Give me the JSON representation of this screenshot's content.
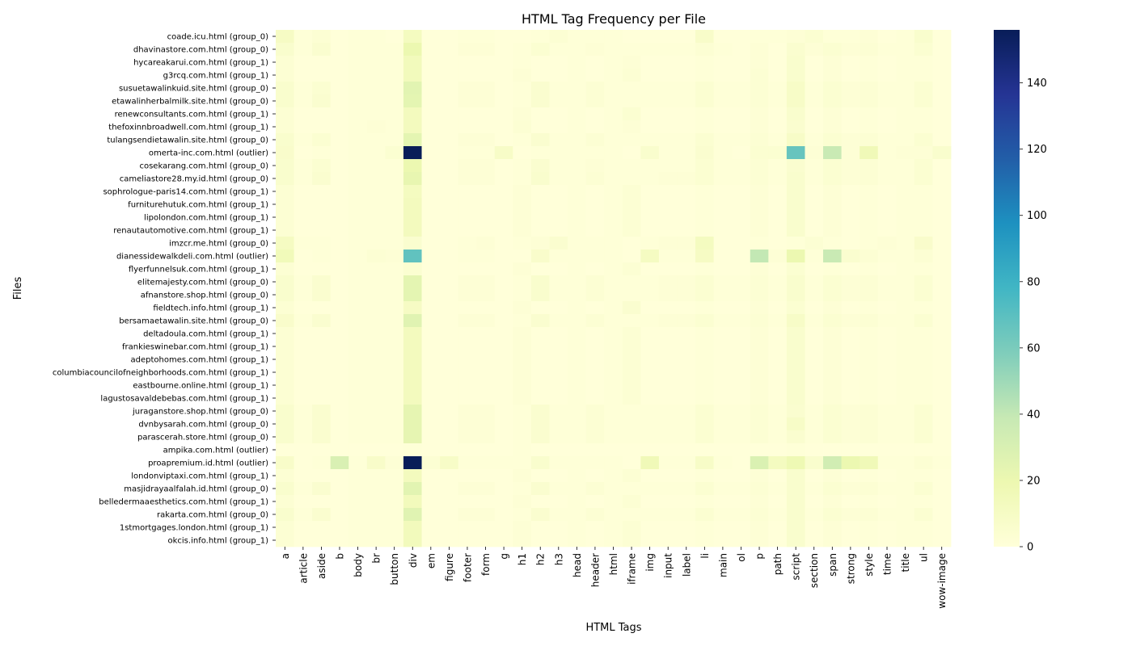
{
  "chart_data": {
    "type": "heatmap",
    "title": "HTML Tag Frequency per File",
    "xlabel": "HTML Tags",
    "ylabel": "Files",
    "colorscale": "YlGnBu",
    "colorbar": {
      "min": 0,
      "max": 156,
      "ticks": [
        0,
        20,
        40,
        60,
        80,
        100,
        120,
        140
      ]
    },
    "columns": [
      "a",
      "article",
      "aside",
      "b",
      "body",
      "br",
      "button",
      "div",
      "em",
      "figure",
      "footer",
      "form",
      "g",
      "h1",
      "h2",
      "h3",
      "head",
      "header",
      "html",
      "iframe",
      "img",
      "input",
      "label",
      "li",
      "main",
      "ol",
      "p",
      "path",
      "script",
      "section",
      "span",
      "strong",
      "style",
      "time",
      "title",
      "ul",
      "wow-image"
    ],
    "rows": [
      "coade.icu.html (group_0)",
      "dhavinastore.com.html (group_0)",
      "hycareakarui.com.html (group_1)",
      "g3rcq.com.html (group_1)",
      "susuetawalinkuid.site.html (group_0)",
      "etawalinherbalmilk.site.html (group_0)",
      "renewconsultants.com.html (group_1)",
      "thefoxinnbroadwell.com.html (group_1)",
      "tulangsendietawalin.site.html (group_0)",
      "omerta-inc.com.html (outlier)",
      "cosekarang.com.html (group_0)",
      "cameliastore28.my.id.html (group_0)",
      "sophrologue-paris14.com.html (group_1)",
      "furniturehutuk.com.html (group_1)",
      "lipolondon.com.html (group_1)",
      "renautautomotive.com.html (group_1)",
      "imzcr.me.html (group_0)",
      "dianessidewalkdeli.com.html (outlier)",
      "flyerfunnelsuk.com.html (group_1)",
      "elitemajesty.com.html (group_0)",
      "afnanstore.shop.html (group_0)",
      "fieldtech.info.html (group_1)",
      "bersamaetawalin.site.html (group_0)",
      "deltadoula.com.html (group_1)",
      "frankieswinebar.com.html (group_1)",
      "adeptohomes.com.html (group_1)",
      "columbiacouncilofneighborhoods.com.html (group_1)",
      "eastbourne.online.html (group_1)",
      "lagustosavaldebebas.com.html (group_1)",
      "juraganstore.shop.html (group_0)",
      "dvnbysarah.com.html (group_0)",
      "parascerah.store.html (group_0)",
      "ampika.com.html (outlier)",
      "proapremium.id.html (outlier)",
      "londonviptaxi.com.html (group_1)",
      "masjidrayaalfalah.id.html (group_0)",
      "belledermaaesthetics.com.html (group_1)",
      "rakarta.com.html (group_0)",
      "1stmortgages.london.html (group_1)",
      "okcis.info.html (group_1)"
    ],
    "values": [
      [
        10,
        1,
        3,
        0,
        1,
        1,
        0,
        12,
        0,
        0,
        1,
        1,
        0,
        0,
        1,
        3,
        1,
        1,
        1,
        0,
        0,
        0,
        0,
        8,
        0,
        0,
        1,
        1,
        2,
        4,
        1,
        1,
        2,
        0,
        1,
        6,
        0
      ],
      [
        6,
        1,
        5,
        0,
        1,
        1,
        1,
        20,
        0,
        0,
        2,
        2,
        0,
        1,
        4,
        1,
        1,
        2,
        1,
        1,
        1,
        1,
        1,
        3,
        1,
        0,
        2,
        0,
        5,
        2,
        4,
        2,
        3,
        1,
        1,
        4,
        0
      ],
      [
        3,
        0,
        0,
        0,
        1,
        1,
        1,
        14,
        0,
        0,
        0,
        0,
        0,
        1,
        0,
        0,
        1,
        0,
        1,
        2,
        0,
        0,
        0,
        1,
        0,
        0,
        2,
        0,
        6,
        0,
        2,
        0,
        1,
        0,
        1,
        1,
        0
      ],
      [
        3,
        0,
        0,
        0,
        1,
        1,
        1,
        14,
        0,
        0,
        0,
        0,
        0,
        2,
        0,
        0,
        1,
        0,
        1,
        3,
        0,
        0,
        0,
        1,
        0,
        0,
        3,
        0,
        6,
        0,
        2,
        0,
        1,
        0,
        1,
        1,
        0
      ],
      [
        6,
        1,
        4,
        0,
        1,
        1,
        1,
        25,
        0,
        0,
        2,
        2,
        0,
        1,
        5,
        1,
        1,
        3,
        1,
        1,
        1,
        1,
        1,
        4,
        1,
        1,
        3,
        1,
        9,
        1,
        4,
        2,
        3,
        1,
        1,
        4,
        0
      ],
      [
        6,
        1,
        5,
        0,
        1,
        1,
        1,
        24,
        0,
        0,
        2,
        2,
        0,
        1,
        5,
        1,
        1,
        3,
        1,
        1,
        1,
        1,
        1,
        4,
        1,
        1,
        3,
        1,
        9,
        1,
        4,
        2,
        3,
        1,
        1,
        4,
        0
      ],
      [
        3,
        0,
        0,
        0,
        1,
        1,
        1,
        13,
        0,
        0,
        0,
        0,
        0,
        2,
        0,
        0,
        1,
        0,
        1,
        4,
        0,
        0,
        0,
        1,
        0,
        0,
        2,
        0,
        6,
        0,
        2,
        0,
        1,
        0,
        1,
        1,
        0
      ],
      [
        3,
        0,
        0,
        0,
        1,
        2,
        1,
        13,
        0,
        0,
        0,
        0,
        0,
        3,
        0,
        0,
        1,
        0,
        1,
        2,
        0,
        0,
        0,
        1,
        0,
        0,
        2,
        0,
        5,
        0,
        2,
        0,
        1,
        0,
        1,
        1,
        0
      ],
      [
        6,
        1,
        4,
        0,
        1,
        1,
        1,
        24,
        0,
        0,
        2,
        2,
        0,
        1,
        5,
        1,
        1,
        3,
        1,
        1,
        1,
        1,
        1,
        4,
        1,
        1,
        3,
        1,
        9,
        1,
        4,
        2,
        3,
        1,
        1,
        4,
        0
      ],
      [
        7,
        0,
        1,
        0,
        1,
        1,
        4,
        156,
        0,
        0,
        1,
        1,
        9,
        0,
        1,
        1,
        1,
        1,
        1,
        0,
        6,
        1,
        1,
        5,
        1,
        0,
        4,
        4,
        66,
        2,
        38,
        2,
        16,
        1,
        2,
        2,
        6
      ],
      [
        6,
        1,
        4,
        0,
        1,
        1,
        1,
        20,
        0,
        0,
        2,
        2,
        0,
        1,
        5,
        1,
        1,
        2,
        1,
        1,
        1,
        1,
        1,
        4,
        1,
        1,
        3,
        1,
        5,
        1,
        4,
        2,
        3,
        1,
        1,
        4,
        0
      ],
      [
        6,
        1,
        5,
        0,
        1,
        1,
        1,
        22,
        0,
        0,
        2,
        2,
        0,
        1,
        6,
        1,
        1,
        3,
        1,
        1,
        1,
        2,
        2,
        4,
        1,
        1,
        3,
        1,
        6,
        1,
        4,
        2,
        3,
        1,
        1,
        4,
        0
      ],
      [
        3,
        0,
        0,
        0,
        1,
        1,
        1,
        12,
        0,
        0,
        0,
        0,
        0,
        2,
        0,
        0,
        1,
        0,
        1,
        3,
        0,
        0,
        0,
        1,
        0,
        0,
        2,
        0,
        6,
        0,
        2,
        0,
        1,
        0,
        1,
        1,
        0
      ],
      [
        3,
        0,
        0,
        0,
        1,
        1,
        1,
        13,
        0,
        0,
        0,
        0,
        0,
        2,
        0,
        0,
        1,
        0,
        1,
        3,
        0,
        0,
        0,
        1,
        0,
        0,
        2,
        0,
        6,
        0,
        2,
        0,
        1,
        0,
        1,
        1,
        0
      ],
      [
        3,
        0,
        0,
        0,
        1,
        1,
        1,
        13,
        0,
        0,
        0,
        0,
        0,
        2,
        0,
        0,
        1,
        0,
        1,
        3,
        0,
        0,
        0,
        1,
        0,
        0,
        2,
        0,
        6,
        0,
        2,
        0,
        1,
        0,
        1,
        1,
        0
      ],
      [
        3,
        0,
        0,
        0,
        1,
        1,
        1,
        13,
        0,
        0,
        0,
        0,
        0,
        2,
        0,
        0,
        1,
        0,
        1,
        3,
        0,
        0,
        0,
        1,
        0,
        0,
        2,
        0,
        6,
        0,
        2,
        0,
        1,
        0,
        1,
        1,
        0
      ],
      [
        11,
        1,
        1,
        0,
        1,
        1,
        1,
        5,
        0,
        0,
        1,
        2,
        0,
        1,
        2,
        5,
        1,
        1,
        1,
        0,
        1,
        2,
        2,
        12,
        0,
        0,
        1,
        0,
        1,
        3,
        1,
        0,
        1,
        2,
        1,
        7,
        0
      ],
      [
        15,
        0,
        1,
        0,
        1,
        3,
        2,
        68,
        0,
        0,
        1,
        1,
        0,
        0,
        7,
        1,
        1,
        1,
        1,
        0,
        11,
        1,
        1,
        10,
        0,
        0,
        40,
        2,
        20,
        1,
        38,
        5,
        3,
        1,
        1,
        3,
        0
      ],
      [
        3,
        0,
        0,
        0,
        1,
        1,
        1,
        4,
        0,
        0,
        0,
        0,
        0,
        2,
        0,
        0,
        1,
        0,
        1,
        3,
        0,
        0,
        0,
        1,
        0,
        0,
        2,
        0,
        4,
        0,
        1,
        0,
        1,
        0,
        1,
        1,
        0
      ],
      [
        6,
        1,
        5,
        0,
        1,
        1,
        1,
        24,
        0,
        0,
        2,
        2,
        0,
        1,
        6,
        1,
        1,
        3,
        1,
        1,
        1,
        2,
        2,
        4,
        1,
        1,
        3,
        1,
        6,
        1,
        4,
        2,
        3,
        1,
        1,
        4,
        0
      ],
      [
        6,
        1,
        5,
        0,
        1,
        1,
        1,
        24,
        0,
        0,
        2,
        2,
        0,
        1,
        6,
        1,
        1,
        3,
        1,
        1,
        1,
        2,
        2,
        4,
        1,
        1,
        3,
        1,
        6,
        1,
        4,
        2,
        3,
        1,
        1,
        4,
        0
      ],
      [
        3,
        0,
        0,
        0,
        1,
        1,
        1,
        10,
        0,
        0,
        0,
        0,
        0,
        2,
        0,
        0,
        1,
        0,
        1,
        5,
        0,
        0,
        0,
        1,
        0,
        0,
        2,
        0,
        4,
        0,
        2,
        0,
        1,
        0,
        1,
        1,
        0
      ],
      [
        7,
        1,
        5,
        0,
        1,
        1,
        1,
        26,
        0,
        0,
        2,
        2,
        0,
        1,
        5,
        1,
        1,
        3,
        1,
        1,
        1,
        2,
        2,
        4,
        1,
        1,
        3,
        1,
        9,
        1,
        4,
        2,
        3,
        1,
        1,
        4,
        0
      ],
      [
        3,
        0,
        0,
        0,
        1,
        1,
        1,
        13,
        0,
        0,
        0,
        0,
        0,
        2,
        0,
        0,
        1,
        0,
        1,
        3,
        0,
        0,
        0,
        1,
        0,
        0,
        2,
        0,
        6,
        0,
        2,
        0,
        1,
        0,
        1,
        1,
        0
      ],
      [
        3,
        0,
        0,
        0,
        1,
        1,
        1,
        13,
        0,
        0,
        0,
        0,
        0,
        2,
        0,
        0,
        1,
        0,
        1,
        3,
        0,
        0,
        0,
        1,
        0,
        0,
        2,
        0,
        6,
        0,
        2,
        0,
        1,
        0,
        1,
        1,
        0
      ],
      [
        3,
        0,
        0,
        0,
        1,
        1,
        1,
        13,
        0,
        0,
        0,
        0,
        0,
        2,
        0,
        0,
        1,
        0,
        1,
        3,
        0,
        0,
        0,
        1,
        0,
        0,
        2,
        0,
        6,
        0,
        2,
        0,
        1,
        0,
        1,
        1,
        0
      ],
      [
        3,
        0,
        0,
        0,
        1,
        1,
        1,
        13,
        0,
        0,
        0,
        0,
        0,
        2,
        0,
        0,
        1,
        0,
        1,
        3,
        0,
        0,
        0,
        1,
        0,
        0,
        2,
        0,
        6,
        0,
        2,
        0,
        1,
        0,
        1,
        1,
        0
      ],
      [
        3,
        0,
        0,
        0,
        1,
        1,
        1,
        13,
        0,
        0,
        0,
        0,
        0,
        2,
        0,
        0,
        1,
        0,
        1,
        3,
        0,
        0,
        0,
        1,
        0,
        0,
        2,
        0,
        6,
        0,
        2,
        0,
        1,
        0,
        1,
        1,
        0
      ],
      [
        3,
        0,
        0,
        0,
        1,
        1,
        1,
        13,
        0,
        0,
        0,
        0,
        0,
        2,
        0,
        0,
        1,
        0,
        1,
        3,
        0,
        0,
        0,
        1,
        0,
        0,
        2,
        0,
        6,
        0,
        2,
        0,
        1,
        0,
        1,
        1,
        0
      ],
      [
        6,
        1,
        5,
        0,
        1,
        1,
        1,
        23,
        0,
        0,
        2,
        2,
        0,
        1,
        5,
        1,
        1,
        3,
        1,
        1,
        1,
        1,
        1,
        4,
        1,
        1,
        3,
        1,
        5,
        1,
        4,
        2,
        3,
        1,
        1,
        4,
        0
      ],
      [
        6,
        1,
        5,
        0,
        1,
        1,
        1,
        23,
        0,
        0,
        2,
        2,
        0,
        1,
        5,
        1,
        1,
        3,
        1,
        1,
        1,
        1,
        1,
        4,
        1,
        1,
        3,
        1,
        9,
        1,
        4,
        2,
        3,
        1,
        1,
        4,
        0
      ],
      [
        6,
        1,
        5,
        0,
        1,
        1,
        1,
        23,
        0,
        0,
        2,
        2,
        0,
        1,
        5,
        1,
        1,
        3,
        1,
        1,
        1,
        1,
        1,
        4,
        1,
        1,
        3,
        1,
        5,
        1,
        4,
        2,
        3,
        1,
        1,
        4,
        0
      ],
      [
        0,
        0,
        0,
        0,
        0,
        0,
        0,
        1,
        0,
        0,
        0,
        0,
        0,
        1,
        0,
        0,
        0,
        0,
        0,
        0,
        0,
        0,
        0,
        0,
        0,
        0,
        0,
        0,
        1,
        0,
        0,
        0,
        0,
        0,
        0,
        0,
        0
      ],
      [
        8,
        0,
        1,
        30,
        1,
        8,
        2,
        156,
        3,
        9,
        1,
        1,
        1,
        1,
        6,
        1,
        1,
        1,
        1,
        0,
        16,
        1,
        1,
        9,
        1,
        0,
        29,
        12,
        18,
        6,
        34,
        20,
        16,
        1,
        1,
        3,
        1
      ],
      [
        3,
        0,
        0,
        0,
        1,
        1,
        1,
        13,
        0,
        0,
        0,
        0,
        0,
        2,
        0,
        0,
        1,
        0,
        1,
        3,
        0,
        0,
        0,
        1,
        0,
        0,
        2,
        0,
        6,
        0,
        2,
        0,
        1,
        0,
        1,
        1,
        0
      ],
      [
        6,
        1,
        5,
        0,
        1,
        1,
        1,
        25,
        0,
        0,
        2,
        2,
        0,
        1,
        5,
        1,
        1,
        3,
        1,
        1,
        1,
        1,
        1,
        4,
        1,
        1,
        3,
        1,
        6,
        1,
        4,
        2,
        3,
        1,
        1,
        4,
        0
      ],
      [
        3,
        0,
        0,
        0,
        1,
        1,
        1,
        14,
        0,
        0,
        0,
        0,
        0,
        2,
        0,
        0,
        1,
        0,
        1,
        3,
        0,
        0,
        0,
        1,
        0,
        0,
        2,
        0,
        6,
        0,
        2,
        0,
        1,
        0,
        1,
        1,
        0
      ],
      [
        6,
        1,
        5,
        0,
        1,
        1,
        1,
        26,
        0,
        0,
        2,
        2,
        0,
        1,
        5,
        1,
        1,
        3,
        1,
        1,
        1,
        1,
        1,
        4,
        1,
        1,
        3,
        1,
        6,
        1,
        4,
        2,
        3,
        1,
        1,
        4,
        0
      ],
      [
        3,
        0,
        0,
        0,
        1,
        1,
        1,
        14,
        0,
        0,
        0,
        0,
        0,
        2,
        0,
        0,
        1,
        0,
        1,
        3,
        0,
        0,
        0,
        1,
        0,
        0,
        2,
        0,
        6,
        0,
        2,
        0,
        1,
        0,
        1,
        1,
        0
      ],
      [
        3,
        0,
        0,
        0,
        1,
        1,
        1,
        14,
        0,
        0,
        0,
        0,
        0,
        2,
        0,
        0,
        1,
        0,
        1,
        3,
        0,
        0,
        0,
        1,
        0,
        0,
        2,
        0,
        6,
        0,
        2,
        0,
        1,
        0,
        1,
        1,
        0
      ]
    ]
  }
}
